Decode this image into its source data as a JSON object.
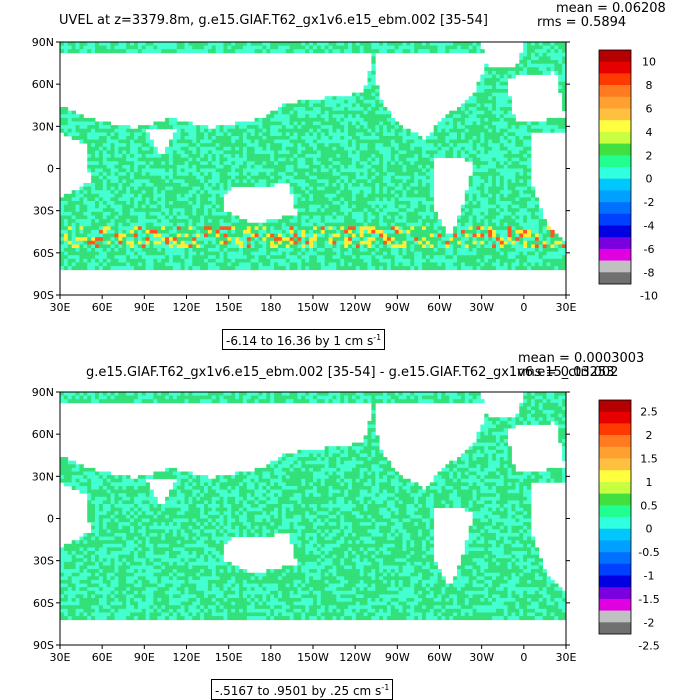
{
  "panel1": {
    "title": "UVEL at z=3379.8m, g.e15.GIAF.T62_gx1v6.e15_ebm.002 [35-54]",
    "mean_text": "mean = 0.06208",
    "rms_text": "rms = 0.5894",
    "range_text": "-6.14 to 16.36 by 1 cm s",
    "range_exp": "-1",
    "lat_labels": [
      "90N",
      "60N",
      "30N",
      "0",
      "30S",
      "60S",
      "90S"
    ],
    "lon_labels": [
      "30E",
      "60E",
      "90E",
      "120E",
      "150E",
      "180",
      "150W",
      "120W",
      "90W",
      "60W",
      "30W",
      "0",
      "30E"
    ],
    "colorbar_labels": [
      "10",
      "8",
      "6",
      "4",
      "2",
      "0",
      "-2",
      "-4",
      "-6",
      "-8",
      "-10"
    ]
  },
  "panel2": {
    "title": "g.e15.GIAF.T62_gx1v6.e15_ebm.002 [35-54] - g.e15.GIAF.T62_gx1v6.e15_ctrl.002",
    "mean_text": "mean = 0.0003003",
    "rms_text": "rms = 0.03253",
    "range_text": "-.5167 to .9501 by .25 cm s",
    "range_exp": "-1",
    "lat_labels": [
      "90N",
      "60N",
      "30N",
      "0",
      "30S",
      "60S",
      "90S"
    ],
    "lon_labels": [
      "30E",
      "60E",
      "90E",
      "120E",
      "150E",
      "180",
      "150W",
      "120W",
      "90W",
      "60W",
      "30W",
      "0",
      "30E"
    ],
    "colorbar_labels": [
      "2.5",
      "2",
      "1.5",
      "1",
      "0.5",
      "0",
      "-0.5",
      "-1",
      "-1.5",
      "-2",
      "-2.5"
    ]
  },
  "colorbar_colors": [
    "#b40000",
    "#e60000",
    "#ff3a00",
    "#ff7a20",
    "#ffa030",
    "#ffc040",
    "#ffff40",
    "#c8ff40",
    "#40e040",
    "#20ff90",
    "#30ffe0",
    "#00c8ff",
    "#00a0ff",
    "#0070ff",
    "#0040ff",
    "#0000e0",
    "#7a00e0",
    "#e000e0",
    "#c0c0c0",
    "#707070"
  ],
  "ocean_colors": {
    "primary": "#33e07a",
    "secondary": "#44ffd0",
    "warm": "#ffee33",
    "hot": "#ff5522"
  },
  "chart_data": [
    {
      "type": "heatmap",
      "title": "UVEL at z=3379.8m, g.e15.GIAF.T62_gx1v6.e15_ebm.002 [35-54]",
      "stats": {
        "mean": 0.06208,
        "rms": 0.5894
      },
      "range": {
        "min": -6.14,
        "max": 16.36,
        "interval": 1,
        "units": "cm s-1"
      },
      "xlim": [
        "30E",
        "30E"
      ],
      "ylim": [
        "90S",
        "90N"
      ],
      "contour_levels": [
        -10,
        -9,
        -8,
        -7,
        -6,
        -5,
        -4,
        -3,
        -2,
        -1,
        0,
        1,
        2,
        3,
        4,
        5,
        6,
        7,
        8,
        9,
        10
      ],
      "legend": "right"
    },
    {
      "type": "heatmap",
      "title": "g.e15.GIAF.T62_gx1v6.e15_ebm.002 [35-54] - g.e15.GIAF.T62_gx1v6.e15_ctrl.002",
      "stats": {
        "mean": 0.0003003,
        "rms": 0.03253
      },
      "range": {
        "min": -0.5167,
        "max": 0.9501,
        "interval": 0.25,
        "units": "cm s-1"
      },
      "xlim": [
        "30E",
        "30E"
      ],
      "ylim": [
        "90S",
        "90N"
      ],
      "contour_levels": [
        -2.5,
        -2.25,
        -2,
        -1.75,
        -1.5,
        -1.25,
        -1,
        -0.75,
        -0.5,
        -0.25,
        0,
        0.25,
        0.5,
        0.75,
        1,
        1.25,
        1.5,
        1.75,
        2,
        2.25,
        2.5
      ],
      "legend": "right"
    }
  ]
}
